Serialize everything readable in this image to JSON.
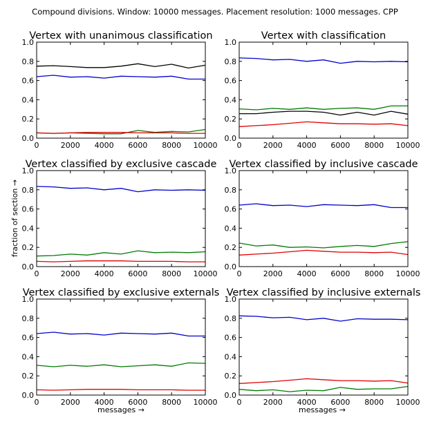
{
  "figure": {
    "suptitle": "Compound divisions. Window: 10000 messages. Placement resolution: 1000 messages. CPP",
    "ylabel": "fraction of section →",
    "xlabel": "messages →"
  },
  "colors": {
    "black": "#000000",
    "blue": "#0000cc",
    "green": "#007a00",
    "red": "#e00000"
  },
  "chart_data": [
    {
      "type": "line",
      "title": "Vertex with unanimous classification",
      "x": [
        0,
        1000,
        2000,
        3000,
        4000,
        5000,
        6000,
        7000,
        8000,
        9000,
        10000
      ],
      "xlim": [
        0,
        10000
      ],
      "ylim": [
        0,
        1.0
      ],
      "xticks": [
        "0",
        "2000",
        "4000",
        "6000",
        "8000",
        "10000"
      ],
      "yticks": [
        "0.0",
        "0.2",
        "0.4",
        "0.6",
        "0.8",
        "1.0"
      ],
      "series": [
        {
          "color": "black",
          "values": [
            0.75,
            0.755,
            0.745,
            0.735,
            0.735,
            0.75,
            0.775,
            0.745,
            0.77,
            0.73,
            0.76
          ]
        },
        {
          "color": "blue",
          "values": [
            0.64,
            0.655,
            0.635,
            0.64,
            0.625,
            0.645,
            0.64,
            0.635,
            0.645,
            0.615,
            0.615
          ]
        },
        {
          "color": "green",
          "values": [
            0.055,
            0.05,
            0.055,
            0.05,
            0.045,
            0.045,
            0.08,
            0.06,
            0.07,
            0.065,
            0.09
          ]
        },
        {
          "color": "red",
          "values": [
            0.055,
            0.05,
            0.055,
            0.06,
            0.06,
            0.06,
            0.055,
            0.055,
            0.055,
            0.05,
            0.05
          ]
        }
      ]
    },
    {
      "type": "line",
      "title": "Vertex with classification",
      "x": [
        0,
        1000,
        2000,
        3000,
        4000,
        5000,
        6000,
        7000,
        8000,
        9000,
        10000
      ],
      "xlim": [
        0,
        10000
      ],
      "ylim": [
        0,
        1.0
      ],
      "xticks": [
        "0",
        "2000",
        "4000",
        "6000",
        "8000",
        "10000"
      ],
      "yticks": [
        "0.0",
        "0.2",
        "0.4",
        "0.6",
        "0.8",
        "1.0"
      ],
      "series": [
        {
          "color": "blue",
          "values": [
            0.835,
            0.83,
            0.815,
            0.82,
            0.8,
            0.815,
            0.78,
            0.8,
            0.795,
            0.8,
            0.795
          ]
        },
        {
          "color": "green",
          "values": [
            0.305,
            0.295,
            0.31,
            0.3,
            0.315,
            0.3,
            0.31,
            0.315,
            0.3,
            0.335,
            0.335
          ]
        },
        {
          "color": "black",
          "values": [
            0.255,
            0.255,
            0.27,
            0.28,
            0.28,
            0.27,
            0.24,
            0.27,
            0.24,
            0.28,
            0.25
          ]
        },
        {
          "color": "red",
          "values": [
            0.12,
            0.13,
            0.14,
            0.155,
            0.17,
            0.16,
            0.15,
            0.15,
            0.145,
            0.15,
            0.13
          ]
        }
      ]
    },
    {
      "type": "line",
      "title": "Vertex classified by exclusive cascade",
      "x": [
        0,
        1000,
        2000,
        3000,
        4000,
        5000,
        6000,
        7000,
        8000,
        9000,
        10000
      ],
      "xlim": [
        0,
        10000
      ],
      "ylim": [
        0,
        1.0
      ],
      "xticks": [
        "0",
        "2000",
        "4000",
        "6000",
        "8000",
        "10000"
      ],
      "yticks": [
        "0.0",
        "0.2",
        "0.4",
        "0.6",
        "0.8",
        "1.0"
      ],
      "series": [
        {
          "color": "blue",
          "values": [
            0.835,
            0.83,
            0.815,
            0.82,
            0.8,
            0.815,
            0.78,
            0.8,
            0.795,
            0.8,
            0.795
          ]
        },
        {
          "color": "green",
          "values": [
            0.11,
            0.115,
            0.13,
            0.12,
            0.145,
            0.13,
            0.165,
            0.145,
            0.15,
            0.145,
            0.155
          ]
        },
        {
          "color": "red",
          "values": [
            0.055,
            0.05,
            0.055,
            0.06,
            0.06,
            0.06,
            0.055,
            0.055,
            0.055,
            0.05,
            0.05
          ]
        }
      ]
    },
    {
      "type": "line",
      "title": "Vertex classified by inclusive cascade",
      "x": [
        0,
        1000,
        2000,
        3000,
        4000,
        5000,
        6000,
        7000,
        8000,
        9000,
        10000
      ],
      "xlim": [
        0,
        10000
      ],
      "ylim": [
        0,
        1.0
      ],
      "xticks": [
        "0",
        "2000",
        "4000",
        "6000",
        "8000",
        "10000"
      ],
      "yticks": [
        "0.0",
        "0.2",
        "0.4",
        "0.6",
        "0.8",
        "1.0"
      ],
      "series": [
        {
          "color": "blue",
          "values": [
            0.64,
            0.655,
            0.635,
            0.64,
            0.625,
            0.645,
            0.64,
            0.635,
            0.645,
            0.615,
            0.615
          ]
        },
        {
          "color": "green",
          "values": [
            0.245,
            0.215,
            0.225,
            0.2,
            0.205,
            0.195,
            0.21,
            0.22,
            0.21,
            0.24,
            0.26
          ]
        },
        {
          "color": "red",
          "values": [
            0.12,
            0.13,
            0.14,
            0.155,
            0.17,
            0.16,
            0.15,
            0.15,
            0.145,
            0.15,
            0.125
          ]
        }
      ]
    },
    {
      "type": "line",
      "title": "Vertex classified by exclusive externals",
      "x": [
        0,
        1000,
        2000,
        3000,
        4000,
        5000,
        6000,
        7000,
        8000,
        9000,
        10000
      ],
      "xlim": [
        0,
        10000
      ],
      "ylim": [
        0,
        1.0
      ],
      "xticks": [
        "0",
        "2000",
        "4000",
        "6000",
        "8000",
        "10000"
      ],
      "yticks": [
        "0.0",
        "0.2",
        "0.4",
        "0.6",
        "0.8",
        "1.0"
      ],
      "series": [
        {
          "color": "blue",
          "values": [
            0.64,
            0.655,
            0.635,
            0.64,
            0.625,
            0.645,
            0.64,
            0.635,
            0.645,
            0.615,
            0.615
          ]
        },
        {
          "color": "green",
          "values": [
            0.31,
            0.295,
            0.31,
            0.3,
            0.315,
            0.295,
            0.305,
            0.315,
            0.3,
            0.335,
            0.33
          ]
        },
        {
          "color": "red",
          "values": [
            0.055,
            0.05,
            0.055,
            0.06,
            0.06,
            0.06,
            0.055,
            0.055,
            0.055,
            0.05,
            0.05
          ]
        }
      ]
    },
    {
      "type": "line",
      "title": "Vertex classified by inclusive externals",
      "x": [
        0,
        1000,
        2000,
        3000,
        4000,
        5000,
        6000,
        7000,
        8000,
        9000,
        10000
      ],
      "xlim": [
        0,
        10000
      ],
      "ylim": [
        0,
        1.0
      ],
      "xticks": [
        "0",
        "2000",
        "4000",
        "6000",
        "8000",
        "10000"
      ],
      "yticks": [
        "0.0",
        "0.2",
        "0.4",
        "0.6",
        "0.8",
        "1.0"
      ],
      "series": [
        {
          "color": "blue",
          "values": [
            0.825,
            0.82,
            0.805,
            0.81,
            0.785,
            0.8,
            0.77,
            0.795,
            0.79,
            0.79,
            0.785
          ]
        },
        {
          "color": "red",
          "values": [
            0.12,
            0.13,
            0.14,
            0.155,
            0.17,
            0.16,
            0.15,
            0.15,
            0.145,
            0.15,
            0.125
          ]
        },
        {
          "color": "green",
          "values": [
            0.06,
            0.045,
            0.055,
            0.035,
            0.05,
            0.045,
            0.08,
            0.06,
            0.065,
            0.065,
            0.09
          ]
        }
      ]
    }
  ]
}
